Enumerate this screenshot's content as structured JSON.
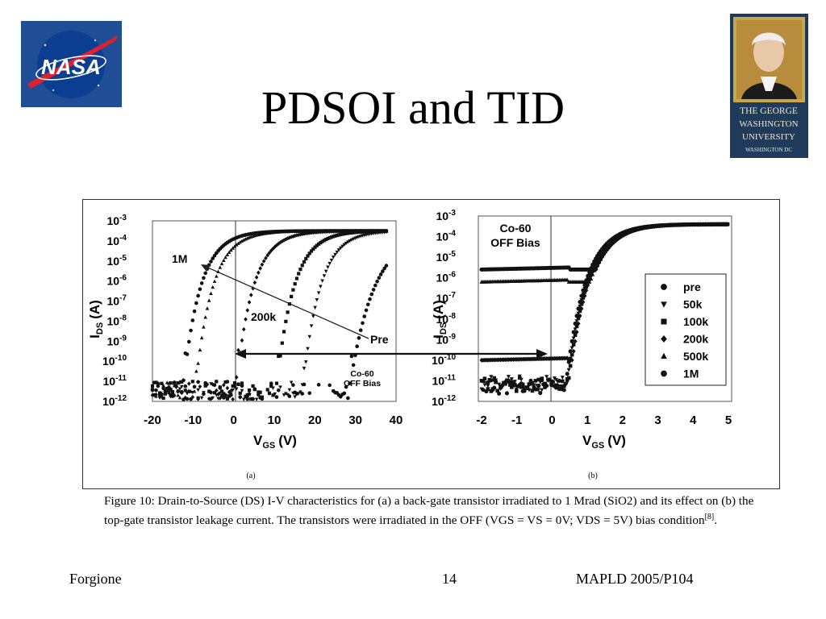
{
  "slide": {
    "title": "PDSOI and TID"
  },
  "logos": {
    "left": {
      "text": "NASA"
    },
    "right": {
      "lines": [
        "THE GEORGE",
        "WASHINGTON",
        "UNIVERSITY",
        "WASHINGTON DC"
      ]
    }
  },
  "chart_data": [
    {
      "type": "scatter",
      "panel_label": "(a)",
      "xlabel_main": "V",
      "xlabel_sub": "GS",
      "xlabel_unit": "(V)",
      "ylabel_main": "I",
      "ylabel_sub": "DS",
      "ylabel_unit": "(A)",
      "xlim": [
        -20,
        40
      ],
      "ylim_exp": [
        -12,
        -3
      ],
      "x_ticks": [
        "-20",
        "-10",
        "0",
        "10",
        "20",
        "30",
        "40"
      ],
      "y_ticks": [
        "10-3",
        "10-4",
        "10-5",
        "10-6",
        "10-7",
        "10-8",
        "10-9",
        "10-10",
        "10-11",
        "10-12"
      ],
      "annotations": [
        "1M",
        "200k",
        "Pre",
        "Co-60",
        "OFF Bias"
      ],
      "series": [
        {
          "marker": "circle",
          "vt": -12.5
        },
        {
          "marker": "triangle",
          "vt": -9.5
        },
        {
          "marker": "diamond",
          "vt": 0.5
        },
        {
          "marker": "square",
          "vt": 10.5
        },
        {
          "marker": "triangle-down",
          "vt": 17
        },
        {
          "marker": "circle",
          "vt": 28.5
        }
      ]
    },
    {
      "type": "scatter",
      "panel_label": "(b)",
      "xlabel_main": "V",
      "xlabel_sub": "GS",
      "xlabel_unit": "(V)",
      "ylabel_main": "I",
      "ylabel_sub": "DS",
      "ylabel_unit": "(A)",
      "xlim": [
        -2,
        5
      ],
      "ylim_exp": [
        -12,
        -3
      ],
      "x_ticks": [
        "-2",
        "-1",
        "0",
        "1",
        "2",
        "3",
        "4",
        "5"
      ],
      "y_ticks": [
        "10-3",
        "10-4",
        "10-5",
        "10-6",
        "10-7",
        "10-8",
        "10-9",
        "10-10",
        "10-11",
        "10-12"
      ],
      "annotations": [
        "Co-60",
        "OFF Bias"
      ],
      "legend": [
        "pre",
        "50k",
        "100k",
        "200k",
        "500k",
        "1M"
      ],
      "series": [
        {
          "name": "pre",
          "marker": "circle",
          "offlevel_exp": -11.3
        },
        {
          "name": "50k",
          "marker": "triangle-down",
          "offlevel_exp": -11.1
        },
        {
          "name": "100k",
          "marker": "square",
          "offlevel_exp": -11.2
        },
        {
          "name": "200k",
          "marker": "diamond",
          "offlevel_exp": -10.0
        },
        {
          "name": "500k",
          "marker": "triangle",
          "offlevel_exp": -6.2
        },
        {
          "name": "1M",
          "marker": "circle",
          "offlevel_exp": -5.6
        }
      ]
    }
  ],
  "caption": {
    "text": "Figure 10:  Drain-to-Source (DS)  I-V characteristics for (a) a back-gate transistor irradiated to 1 Mrad (SiO2) and its effect on (b) the top-gate transistor leakage current.  The transistors were irradiated in the OFF (VGS = VS = 0V; VDS = 5V) bias condition",
    "ref": "[8]",
    "end": "."
  },
  "footer": {
    "left": "Forgione",
    "page": "14",
    "right": "MAPLD 2005/P104"
  }
}
